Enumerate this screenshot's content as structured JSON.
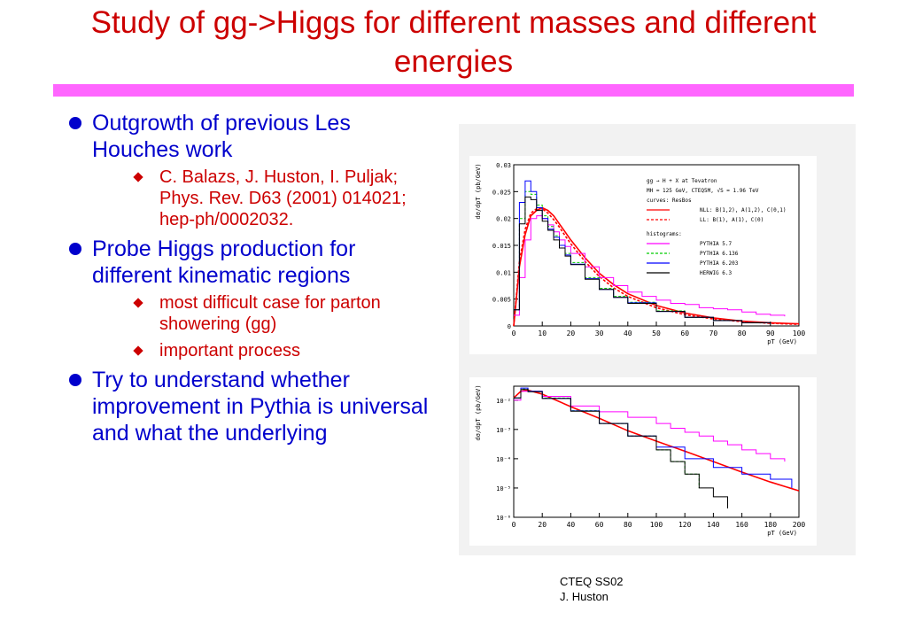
{
  "slide": {
    "title": "Study of gg->Higgs for different masses and different energies",
    "bullets": [
      {
        "text": "Outgrowth of  previous Les Houches work",
        "sub": [
          "C. Balazs, J. Huston, I. Puljak; Phys. Rev. D63 (2001) 014021; hep-ph/0002032."
        ]
      },
      {
        "text": "Probe Higgs production for different kinematic regions",
        "sub": [
          "most difficult case for parton showering (gg)",
          "important process"
        ]
      },
      {
        "text": "Try to understand whether improvement in Pythia is universal and what the underlying",
        "sub": []
      }
    ],
    "footer": {
      "line1": "CTEQ SS02",
      "line2": "J. Huston"
    },
    "colors": {
      "title": "#cc0000",
      "bullet": "#0000cc",
      "subbullet": "#cc0000",
      "bar": "#ff66ff"
    }
  },
  "chart_data": [
    {
      "type": "line",
      "ylabel": "dσ/dpT (pb/GeV)",
      "xlabel": "pT (GeV)",
      "xlim": [
        0,
        100
      ],
      "ylim": [
        0,
        0.03
      ],
      "xticks": [
        "0",
        "10",
        "20",
        "30",
        "40",
        "50",
        "60",
        "70",
        "80",
        "90",
        "100"
      ],
      "yticks": [
        "0",
        "0.005",
        "0.01",
        "0.015",
        "0.02",
        "0.025",
        "0.03"
      ],
      "legend": {
        "header": [
          "gg → H + X at Tevatron",
          "MH = 125 GeV, CTEQ5M, √S = 1.96 TeV"
        ],
        "curves_label": "curves: ResBos",
        "curves": [
          {
            "name": "NLL: B(1,2), A(1,2), C(0,1)",
            "color": "#ff0000",
            "dash": false
          },
          {
            "name": "LL: B(1), A(1), C(0)",
            "color": "#ff0000",
            "dash": true
          }
        ],
        "histograms_label": "histograms:",
        "histograms": [
          {
            "name": "PYTHIA 5.7",
            "color": "#ff00ff",
            "dash": false
          },
          {
            "name": "PYTHIA 6.136",
            "color": "#00cc00",
            "dash": true
          },
          {
            "name": "PYTHIA 6.203",
            "color": "#0000ff",
            "dash": false
          },
          {
            "name": "HERWIG 6.3",
            "color": "#000000",
            "dash": false
          }
        ]
      },
      "series": [
        {
          "color": "#ff0000",
          "x": [
            0,
            2,
            4,
            6,
            8,
            10,
            12,
            14,
            16,
            18,
            20,
            25,
            30,
            35,
            40,
            50,
            60,
            70,
            80,
            90,
            100
          ],
          "y": [
            0,
            0.011,
            0.017,
            0.0205,
            0.0215,
            0.022,
            0.0215,
            0.0205,
            0.019,
            0.0175,
            0.016,
            0.0127,
            0.0098,
            0.0077,
            0.006,
            0.0038,
            0.0024,
            0.0015,
            0.0009,
            0.0006,
            0.0004
          ]
        },
        {
          "color": "#ff0000",
          "dash": true,
          "x": [
            0,
            2,
            4,
            6,
            8,
            10,
            12,
            14,
            16,
            18,
            20,
            25,
            30,
            35,
            40,
            50,
            60,
            70,
            80,
            90,
            100
          ],
          "y": [
            0,
            0.012,
            0.018,
            0.021,
            0.0218,
            0.0218,
            0.021,
            0.0198,
            0.0184,
            0.0168,
            0.0153,
            0.012,
            0.0092,
            0.0071,
            0.0055,
            0.0034,
            0.0021,
            0.0013,
            0.0008,
            0.0005,
            0.0003
          ]
        },
        {
          "color": "#ff00ff",
          "step": true,
          "x": [
            0,
            2,
            4,
            6,
            8,
            10,
            12,
            14,
            16,
            18,
            20,
            25,
            30,
            35,
            40,
            45,
            50,
            55,
            60,
            65,
            70,
            75,
            80,
            85,
            90,
            95
          ],
          "y": [
            0.002,
            0.009,
            0.016,
            0.02,
            0.0205,
            0.02,
            0.0188,
            0.0175,
            0.016,
            0.0148,
            0.0135,
            0.011,
            0.009,
            0.0075,
            0.0063,
            0.0055,
            0.0048,
            0.0042,
            0.004,
            0.0034,
            0.0032,
            0.003,
            0.0026,
            0.0022,
            0.002,
            0.0018
          ]
        },
        {
          "color": "#00cc00",
          "step": true,
          "dash": true,
          "x": [
            0,
            2,
            4,
            6,
            8,
            10,
            12,
            14,
            16,
            18,
            20,
            25,
            30,
            35,
            40,
            50,
            60,
            70,
            80,
            90
          ],
          "y": [
            0.003,
            0.02,
            0.025,
            0.0245,
            0.0225,
            0.0205,
            0.0185,
            0.0168,
            0.015,
            0.0135,
            0.0118,
            0.009,
            0.007,
            0.0055,
            0.0044,
            0.0028,
            0.0016,
            0.001,
            0.0006,
            0.0004
          ]
        },
        {
          "color": "#0000ff",
          "step": true,
          "x": [
            0,
            2,
            4,
            6,
            8,
            10,
            12,
            14,
            16,
            18,
            20,
            25,
            30,
            35,
            40,
            50,
            60,
            70,
            80,
            90
          ],
          "y": [
            0.003,
            0.023,
            0.027,
            0.025,
            0.022,
            0.02,
            0.018,
            0.0165,
            0.015,
            0.0132,
            0.0115,
            0.0088,
            0.0068,
            0.0053,
            0.0043,
            0.0027,
            0.0016,
            0.001,
            0.0006,
            0.0004
          ]
        },
        {
          "color": "#000000",
          "step": true,
          "x": [
            0,
            2,
            4,
            6,
            8,
            10,
            12,
            14,
            16,
            18,
            20,
            25,
            30,
            35,
            40,
            50,
            60,
            70,
            80,
            90
          ],
          "y": [
            0.003,
            0.019,
            0.024,
            0.0235,
            0.0215,
            0.0195,
            0.0178,
            0.016,
            0.0145,
            0.013,
            0.0114,
            0.0087,
            0.0068,
            0.0053,
            0.0042,
            0.0027,
            0.0016,
            0.001,
            0.0006,
            0.0004
          ]
        }
      ]
    },
    {
      "type": "line",
      "yscale": "log",
      "ylabel": "dσ/dpT (pb/GeV)",
      "xlabel": "pT (GeV)",
      "xlim": [
        0,
        200
      ],
      "ylim": [
        1e-06,
        0.03
      ],
      "xticks": [
        "0",
        "20",
        "40",
        "60",
        "80",
        "100",
        "120",
        "140",
        "160",
        "180",
        "200"
      ],
      "yticks": [
        "10⁻²",
        "10⁻³",
        "10⁻⁴",
        "10⁻⁵",
        "10⁻⁶"
      ],
      "series": [
        {
          "color": "#ff0000",
          "x": [
            0,
            5,
            10,
            20,
            40,
            60,
            80,
            100,
            120,
            140,
            160,
            180,
            200
          ],
          "y": [
            0.012,
            0.02,
            0.022,
            0.016,
            0.006,
            0.0024,
            0.0009,
            0.0004,
            0.00018,
            8e-05,
            3.5e-05,
            1.6e-05,
            8e-06
          ]
        },
        {
          "color": "#ff00ff",
          "step": true,
          "x": [
            0,
            5,
            10,
            20,
            40,
            60,
            80,
            100,
            110,
            120,
            130,
            140,
            150,
            160,
            170,
            180,
            190
          ],
          "y": [
            0.01,
            0.02,
            0.02,
            0.0135,
            0.0063,
            0.004,
            0.0026,
            0.0016,
            0.0011,
            0.0008,
            0.0006,
            0.0004,
            0.0003,
            0.0002,
            0.00015,
            0.0001,
            8e-05
          ]
        },
        {
          "color": "#00cc00",
          "step": true,
          "dash": true,
          "x": [
            0,
            5,
            10,
            20,
            40,
            60,
            80,
            100,
            110,
            120,
            130
          ],
          "y": [
            0.012,
            0.024,
            0.02,
            0.0118,
            0.0044,
            0.0016,
            0.0006,
            0.0002,
            8e-05,
            3e-05,
            1e-05
          ]
        },
        {
          "color": "#0000ff",
          "step": true,
          "x": [
            0,
            5,
            10,
            20,
            40,
            60,
            80,
            100,
            120,
            140,
            160,
            180,
            195
          ],
          "y": [
            0.012,
            0.026,
            0.02,
            0.0115,
            0.0043,
            0.0016,
            0.0006,
            0.00025,
            0.0001,
            5e-05,
            3e-05,
            2e-05,
            1e-05
          ]
        },
        {
          "color": "#000000",
          "step": true,
          "x": [
            0,
            5,
            10,
            20,
            40,
            60,
            80,
            100,
            110,
            120,
            130,
            140,
            150
          ],
          "y": [
            0.012,
            0.023,
            0.0195,
            0.0114,
            0.0042,
            0.0016,
            0.0006,
            0.0002,
            8e-05,
            3e-05,
            1e-05,
            5e-06,
            2e-06
          ]
        }
      ]
    }
  ]
}
